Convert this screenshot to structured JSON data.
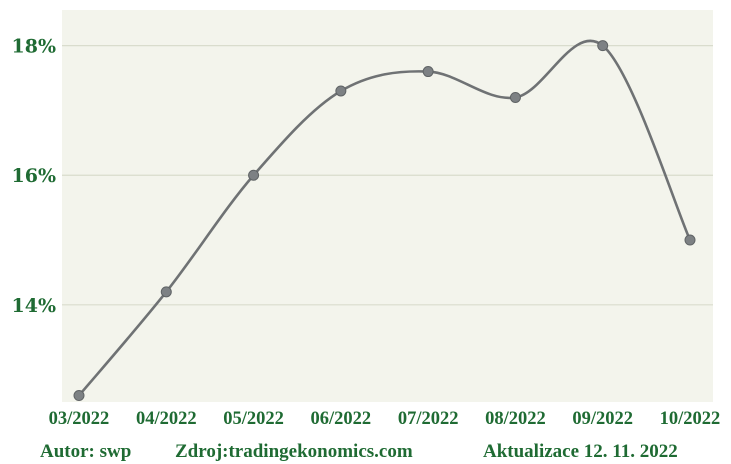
{
  "chart_data": {
    "type": "line",
    "title": "",
    "xlabel": "",
    "ylabel": "",
    "categories": [
      "03/2022",
      "04/2022",
      "05/2022",
      "06/2022",
      "07/2022",
      "08/2022",
      "09/2022",
      "10/2022"
    ],
    "series": [
      {
        "values": [
          12.6,
          14.2,
          16.0,
          17.3,
          17.6,
          17.2,
          18.0,
          15.0
        ],
        "color": "#6f7274"
      }
    ],
    "ylim": [
      12.5,
      18.55
    ],
    "y_ticks": [
      {
        "value": 14,
        "label": "14%"
      },
      {
        "value": 16,
        "label": "16%"
      },
      {
        "value": 18,
        "label": "18%"
      }
    ],
    "grid": true,
    "legend": "none",
    "tick_color": "#1f6b33",
    "background_color": "#f3f4ec"
  },
  "footer": {
    "author": "Autor: swp",
    "source": "Zdroj:tradingekonomics.com",
    "updated": "Aktualizace 12. 11. 2022"
  }
}
